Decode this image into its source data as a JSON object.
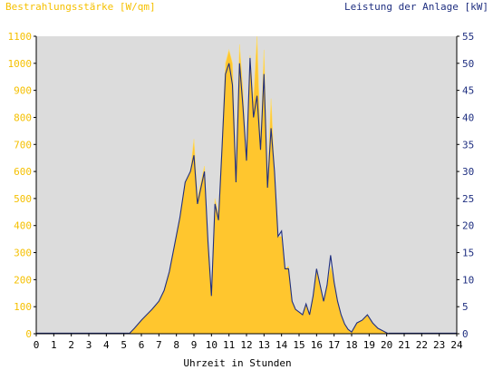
{
  "chart_data": {
    "type": "area",
    "ylabel_left": "Bestrahlungsstärke [W/qm]",
    "ylabel_right": "Leistung der Anlage [kW]",
    "xlabel": "Uhrzeit in Stunden",
    "xlim": [
      0,
      24
    ],
    "ylim_left": [
      0,
      1100
    ],
    "ylim_right": [
      0,
      55
    ],
    "x_ticks": [
      "0",
      "1",
      "2",
      "3",
      "4",
      "5",
      "6",
      "7",
      "8",
      "9",
      "10",
      "11",
      "12",
      "13",
      "14",
      "15",
      "16",
      "17",
      "18",
      "19",
      "20",
      "21",
      "22",
      "23",
      "24"
    ],
    "y_ticks_left": [
      "0",
      "100",
      "200",
      "300",
      "400",
      "500",
      "600",
      "700",
      "800",
      "900",
      "1000",
      "1100"
    ],
    "y_ticks_right": [
      "0",
      "5",
      "10",
      "15",
      "20",
      "25",
      "30",
      "35",
      "40",
      "45",
      "50",
      "55"
    ],
    "grid": false,
    "colors": {
      "irradiance_fill": "#ffc62e",
      "irradiance_peak": "#ffdd66",
      "power_line": "#1f2f80",
      "plot_background": "#dcdcdc",
      "left_axis_text": "#f5c000",
      "right_axis_text": "#1f2f80"
    },
    "series": [
      {
        "axis": "left",
        "x": [
          5.3,
          5.6,
          6.0,
          6.3,
          6.6,
          7.0,
          7.3,
          7.6,
          7.9,
          8.2,
          8.5,
          8.8,
          9.0,
          9.2,
          9.4,
          9.6,
          9.8,
          10.0,
          10.2,
          10.4,
          10.6,
          10.8,
          11.0,
          11.2,
          11.4,
          11.6,
          11.8,
          12.0,
          12.2,
          12.4,
          12.6,
          12.8,
          13.0,
          13.2,
          13.4,
          13.6,
          13.8,
          14.0,
          14.2,
          14.4,
          14.6,
          14.8,
          15.0,
          15.2,
          15.4,
          15.6,
          15.8,
          16.0,
          16.2,
          16.4,
          16.6,
          16.8,
          17.0,
          17.2,
          17.4,
          17.6,
          17.8,
          18.0,
          18.3,
          18.6,
          18.9,
          19.2,
          19.5,
          19.8,
          20.1
        ],
        "y": [
          0,
          20,
          50,
          70,
          90,
          120,
          160,
          230,
          330,
          430,
          560,
          600,
          720,
          500,
          560,
          620,
          340,
          140,
          500,
          440,
          700,
          1000,
          1050,
          1000,
          600,
          1070,
          900,
          640,
          1030,
          860,
          1100,
          700,
          1050,
          560,
          870,
          600,
          360,
          360,
          240,
          250,
          120,
          90,
          80,
          70,
          110,
          70,
          140,
          240,
          180,
          120,
          180,
          250,
          190,
          120,
          70,
          35,
          15,
          5,
          40,
          50,
          70,
          40,
          20,
          10,
          0
        ]
      },
      {
        "axis": "right",
        "x": [
          5.3,
          5.6,
          6.0,
          6.3,
          6.6,
          7.0,
          7.3,
          7.6,
          7.9,
          8.2,
          8.5,
          8.8,
          9.0,
          9.2,
          9.4,
          9.6,
          9.8,
          10.0,
          10.2,
          10.4,
          10.6,
          10.8,
          11.0,
          11.2,
          11.4,
          11.6,
          11.8,
          12.0,
          12.2,
          12.4,
          12.6,
          12.8,
          13.0,
          13.2,
          13.4,
          13.6,
          13.8,
          14.0,
          14.2,
          14.4,
          14.6,
          14.8,
          15.0,
          15.2,
          15.4,
          15.6,
          15.8,
          16.0,
          16.2,
          16.4,
          16.6,
          16.8,
          17.0,
          17.2,
          17.4,
          17.6,
          17.8,
          18.0,
          18.3,
          18.6,
          18.9,
          19.2,
          19.5,
          19.8,
          20.1
        ],
        "y": [
          0,
          1,
          2.5,
          3.5,
          4.5,
          6,
          8,
          11.5,
          16.5,
          21.5,
          28,
          30,
          33,
          24,
          27,
          30,
          17,
          7,
          24,
          21,
          34,
          48,
          50,
          46,
          28,
          50,
          42,
          32,
          51,
          40,
          44,
          34,
          48,
          27,
          38,
          30,
          18,
          19,
          12,
          12,
          6,
          4.5,
          4,
          3.5,
          5.5,
          3.5,
          7,
          12,
          9,
          6,
          9,
          14.5,
          9.5,
          6,
          3.5,
          1.8,
          0.8,
          0.3,
          2,
          2.5,
          3.5,
          2,
          1,
          0.5,
          0
        ]
      }
    ]
  }
}
